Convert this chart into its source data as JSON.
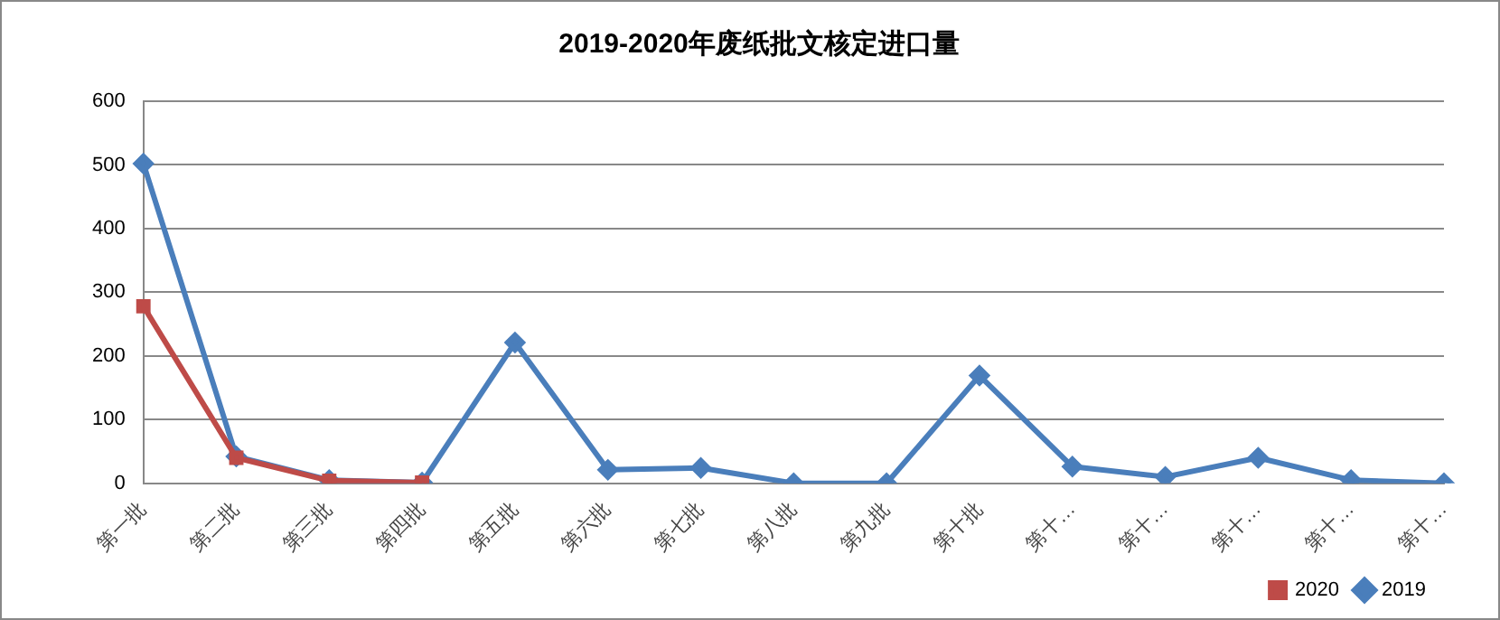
{
  "chart_data": {
    "type": "line",
    "title": "2019-2020年废纸批文核定进口量",
    "categories": [
      "第一批",
      "第二批",
      "第三批",
      "第四批",
      "第五批",
      "第六批",
      "第七批",
      "第八批",
      "第九批",
      "第十批",
      "第十…",
      "第十…",
      "第十…",
      "第十…",
      "第十…"
    ],
    "series": [
      {
        "name": "2019",
        "color": "#4a7ebb",
        "marker": "diamond",
        "values": [
          502,
          42,
          5,
          1,
          221,
          21,
          24,
          0,
          0,
          169,
          26,
          10,
          40,
          5,
          0
        ]
      },
      {
        "name": "2020",
        "color": "#be4b48",
        "marker": "square",
        "values": [
          278,
          40,
          4,
          1,
          null,
          null,
          null,
          null,
          null,
          null,
          null,
          null,
          null,
          null,
          null
        ]
      }
    ],
    "ylim": [
      0,
      600
    ],
    "yticks": [
      0,
      100,
      200,
      300,
      400,
      500,
      600
    ],
    "grid": "y",
    "legend": "bottom right",
    "line_style": "solid"
  }
}
